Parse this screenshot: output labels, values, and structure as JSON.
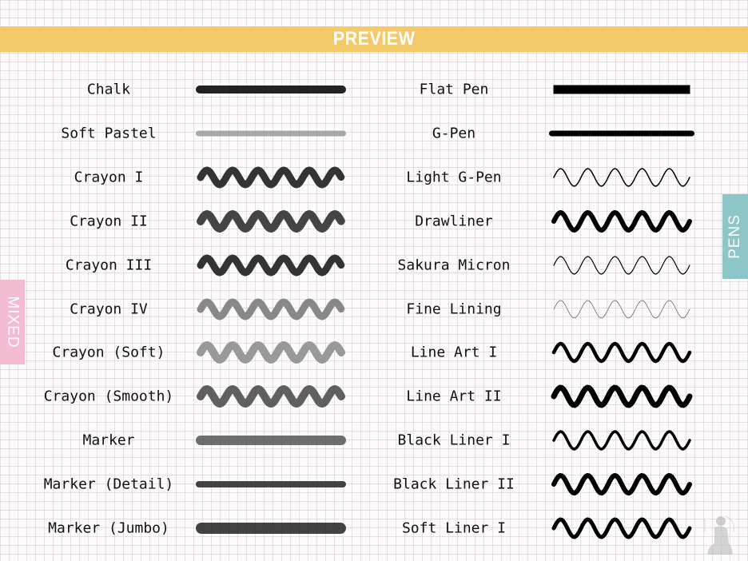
{
  "header": {
    "title": "PREVIEW",
    "color": "#f4c96a"
  },
  "side_tabs": {
    "pens": {
      "label": "PENS",
      "color": "#8cc6c7"
    },
    "mixed": {
      "label": "MIXED",
      "color": "#f3bcd3"
    }
  },
  "left_column": [
    {
      "name": "Chalk",
      "stroke": "line",
      "weight": 10,
      "color": "#222",
      "texture": "rough"
    },
    {
      "name": "Soft Pastel",
      "stroke": "line",
      "weight": 7,
      "color": "#999",
      "texture": "soft"
    },
    {
      "name": "Crayon I",
      "stroke": "wave",
      "weight": 9,
      "color": "#333",
      "texture": "rough"
    },
    {
      "name": "Crayon II",
      "stroke": "wave",
      "weight": 10,
      "color": "#444",
      "texture": "rough"
    },
    {
      "name": "Crayon III",
      "stroke": "wave",
      "weight": 9,
      "color": "#333",
      "texture": "rough"
    },
    {
      "name": "Crayon IV",
      "stroke": "wave",
      "weight": 9,
      "color": "#888",
      "texture": "rough"
    },
    {
      "name": "Crayon (Soft)",
      "stroke": "wave",
      "weight": 10,
      "color": "#999",
      "texture": "speckle"
    },
    {
      "name": "Crayon (Smooth)",
      "stroke": "wave",
      "weight": 10,
      "color": "#444",
      "texture": "soft"
    },
    {
      "name": "Marker",
      "stroke": "line",
      "weight": 12,
      "color": "#555",
      "texture": "soft"
    },
    {
      "name": "Marker (Detail)",
      "stroke": "line",
      "weight": 8,
      "color": "#222",
      "texture": "soft"
    },
    {
      "name": "Marker (Jumbo)",
      "stroke": "line",
      "weight": 14,
      "color": "#222",
      "texture": "soft"
    }
  ],
  "right_column": [
    {
      "name": "Flat Pen",
      "stroke": "line",
      "weight": 11,
      "color": "#000",
      "texture": "flat"
    },
    {
      "name": "G-Pen",
      "stroke": "line",
      "weight": 7,
      "color": "#000",
      "texture": "round"
    },
    {
      "name": "Light G-Pen",
      "stroke": "wave",
      "weight": 1.5,
      "color": "#000",
      "texture": "round"
    },
    {
      "name": "Drawliner",
      "stroke": "wave",
      "weight": 6,
      "color": "#000",
      "texture": "round"
    },
    {
      "name": "Sakura Micron",
      "stroke": "wave",
      "weight": 1.2,
      "color": "#000",
      "texture": "round"
    },
    {
      "name": "Fine Lining",
      "stroke": "wave",
      "weight": 0.8,
      "color": "#666",
      "texture": "round"
    },
    {
      "name": "Line Art I",
      "stroke": "wave",
      "weight": 4.5,
      "color": "#000",
      "texture": "round"
    },
    {
      "name": "Line Art II",
      "stroke": "wave",
      "weight": 7,
      "color": "#000",
      "texture": "round"
    },
    {
      "name": "Black Liner I",
      "stroke": "wave",
      "weight": 3.5,
      "color": "#000",
      "texture": "round"
    },
    {
      "name": "Black Liner II",
      "stroke": "wave",
      "weight": 6,
      "color": "#000",
      "texture": "round"
    },
    {
      "name": "Soft Liner I",
      "stroke": "wave",
      "weight": 5,
      "color": "#000",
      "texture": "round"
    }
  ],
  "logo": {
    "icon": "figure-with-candle-logo"
  }
}
